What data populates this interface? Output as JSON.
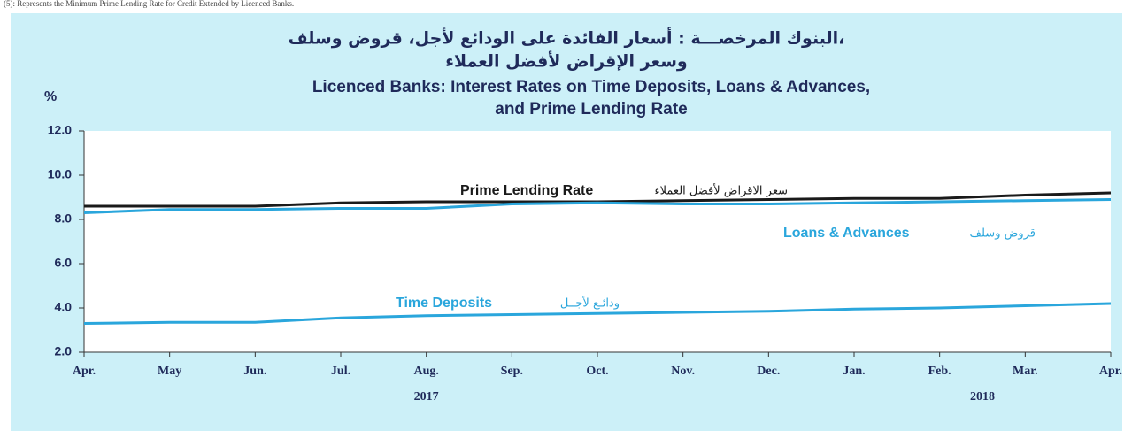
{
  "note": "(5): Represents the Minimum Prime Lending Rate for Credit Extended by Licenced Banks.",
  "chart_data": {
    "type": "line",
    "title_ar": [
      "البنوك المرخصـــة : أسعار الفائدة على الودائع لأجل، قروض وسلف،",
      "وسعر الإقراض لأفضل العملاء"
    ],
    "title": [
      "Licenced Banks:  Interest Rates on Time Deposits, Loans & Advances,",
      "and Prime Lending Rate"
    ],
    "y_label": "%",
    "categories": [
      "Apr.",
      "May",
      "Jun.",
      "Jul.",
      "Aug.",
      "Sep.",
      "Oct.",
      "Nov.",
      "Dec.",
      "Jan.",
      "Feb.",
      "Mar.",
      "Apr."
    ],
    "years": [
      {
        "label": "2017",
        "at": 4
      },
      {
        "label": "2018",
        "at": 10.5
      }
    ],
    "series": [
      {
        "name": "Prime Lending Rate",
        "name_ar": "سعر الاقراض لأفضل العملاء",
        "color": "#1a1a1a",
        "values": [
          8.6,
          8.6,
          8.6,
          8.75,
          8.8,
          8.8,
          8.8,
          8.85,
          8.9,
          8.95,
          8.95,
          9.1,
          9.2
        ]
      },
      {
        "name": "Loans & Advances",
        "name_ar": "قروض وسلف",
        "color": "#2aa6dc",
        "values": [
          8.3,
          8.45,
          8.45,
          8.5,
          8.5,
          8.7,
          8.75,
          8.7,
          8.7,
          8.75,
          8.8,
          8.85,
          8.9
        ]
      },
      {
        "name": "Time Deposits",
        "name_ar": "ودائـع لأجــل",
        "color": "#2aa6dc",
        "values": [
          3.3,
          3.35,
          3.35,
          3.55,
          3.65,
          3.7,
          3.75,
          3.8,
          3.85,
          3.95,
          4.0,
          4.1,
          4.2
        ]
      }
    ],
    "ylim": [
      2,
      12
    ],
    "yticks": [
      {
        "value": 2,
        "label": "2.0"
      },
      {
        "value": 4,
        "label": "4.0"
      },
      {
        "value": 6,
        "label": "6.0"
      },
      {
        "value": 8,
        "label": "8.0"
      },
      {
        "value": 10,
        "label": "10.0"
      },
      {
        "value": 12,
        "label": "12.0"
      }
    ]
  }
}
